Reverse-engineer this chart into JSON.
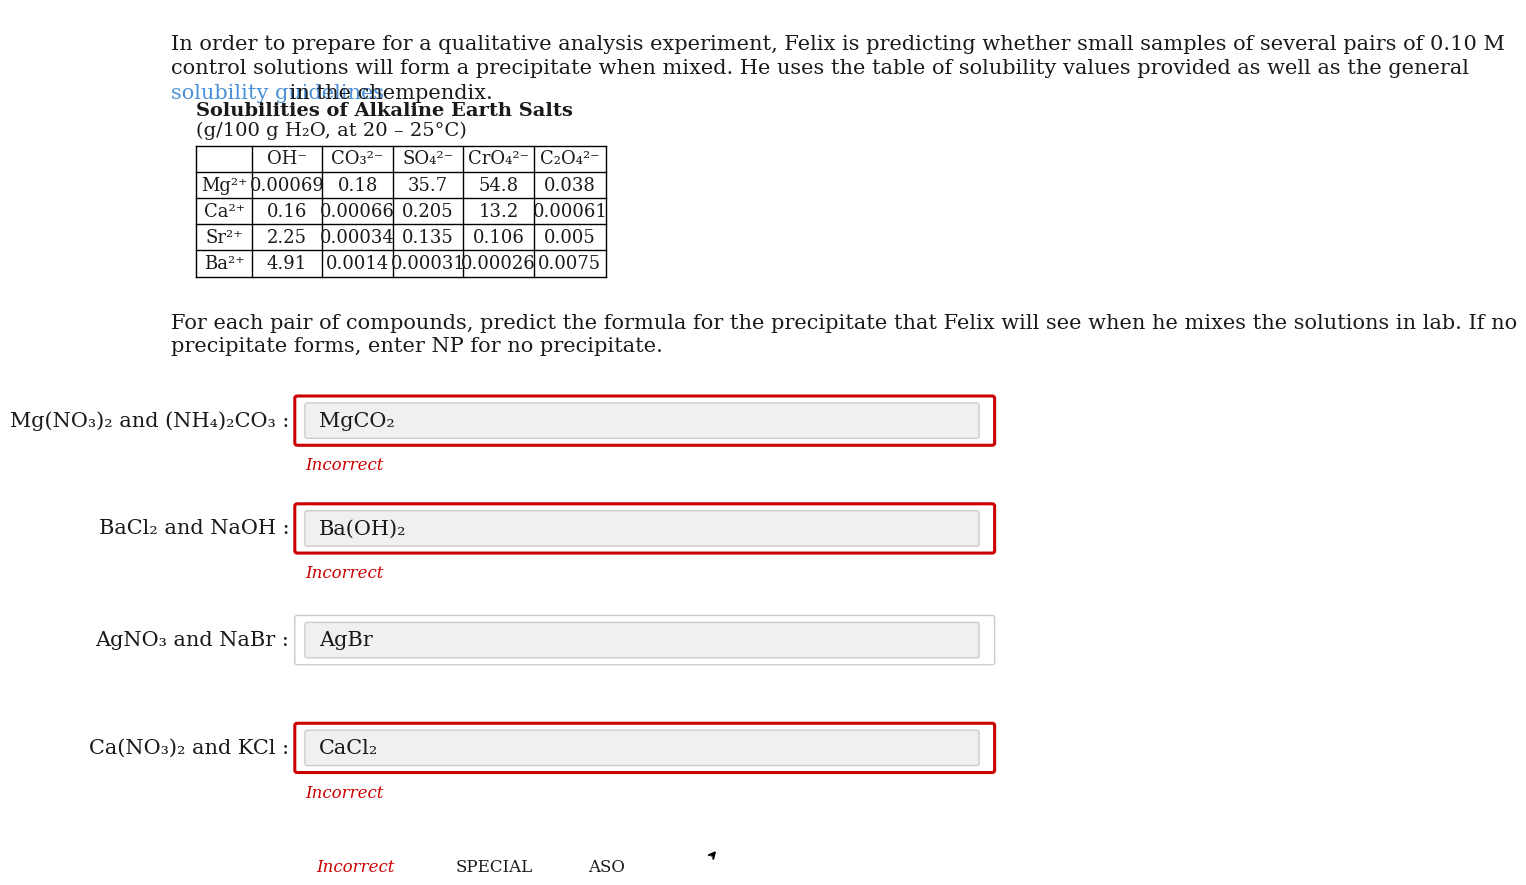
{
  "bg_color": "#ffffff",
  "intro_text_line1": "In order to prepare for a qualitative analysis experiment, Felix is predicting whether small samples of several pairs of 0.10 M",
  "intro_text_line2": "control solutions will form a precipitate when mixed. He uses the table of solubility values provided as well as the general",
  "intro_text_line3_link": "solubility guidelines",
  "intro_text_line3_after": " in the chempendix.",
  "link_color": "#4a90d9",
  "table_title": "Solubilities of Alkaline Earth Salts",
  "table_subtitle": "(g/100 g H₂O, at 20 – 25°C)",
  "col_headers": [
    "OH⁻",
    "CO₃²⁻",
    "SO₄²⁻",
    "CrO₄²⁻",
    "C₂O₄²⁻"
  ],
  "row_headers": [
    "Mg²⁺",
    "Ca²⁺",
    "Sr²⁺",
    "Ba²⁺"
  ],
  "table_data": [
    [
      "0.00069",
      "0.18",
      "35.7",
      "54.8",
      "0.038"
    ],
    [
      "0.16",
      "0.00066",
      "0.205",
      "13.2",
      "0.00061"
    ],
    [
      "2.25",
      "0.00034",
      "0.135",
      "0.106",
      "0.005"
    ],
    [
      "4.91",
      "0.0014",
      "0.00031",
      "0.00026",
      "0.0075"
    ]
  ],
  "instruction_line1": "For each pair of compounds, predict the formula for the precipitate that Felix will see when he mixes the solutions in lab. If no",
  "instruction_line2": "precipitate forms, enter NP for no precipitate.",
  "questions": [
    {
      "label_text": "Mg(NO₃)₂ and (NH₄)₂CO₃ :",
      "answer_text": "MgCO₂",
      "incorrect": true,
      "has_red_border": true
    },
    {
      "label_text": "BaCl₂ and NaOH :",
      "answer_text": "Ba(OH)₂",
      "incorrect": true,
      "has_red_border": true
    },
    {
      "label_text": "AgNO₃ and NaBr :",
      "answer_text": "AgBr",
      "incorrect": false,
      "has_red_border": false
    },
    {
      "label_text": "Ca(NO₃)₂ and KCl :",
      "answer_text": "CaCl₂",
      "incorrect": true,
      "has_red_border": true
    }
  ],
  "incorrect_text": "Incorrect",
  "incorrect_color": "#cc0000",
  "text_color": "#1a1a1a",
  "answer_box_bg": "#f0f0f0",
  "answer_box_border": "#cccccc",
  "red_border_color": "#cc0000",
  "font_size_body": 15,
  "font_size_table": 13,
  "font_size_answer": 15
}
